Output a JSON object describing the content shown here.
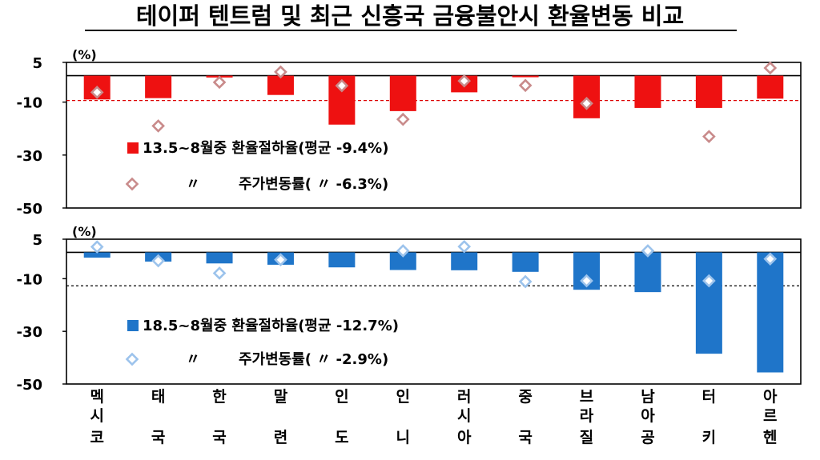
{
  "title": "테이퍼 텐트럼 및 최근 신흥국 금융불안시 환율변동 비교",
  "colors": {
    "top_bar": "#ee1111",
    "top_marker": "#c98b8b",
    "top_refline": "#dd0000",
    "bottom_bar": "#1f75c9",
    "bottom_marker": "#9cc3ec",
    "bottom_refline": "#000000",
    "axis": "#000000",
    "text": "#000000"
  },
  "chart_data": [
    {
      "type": "bar",
      "unit_label": "(%)",
      "categories": [
        "멕시코",
        "태국",
        "한국",
        "말련",
        "인도",
        "인니",
        "러시아",
        "중국",
        "브라질",
        "남아공",
        "터키",
        "아르헨"
      ],
      "ylim": [
        -50,
        5
      ],
      "yticks": [
        5,
        -10,
        -30,
        -50
      ],
      "reference_line": -9.4,
      "series": [
        {
          "name": "13.5~8월중 환율절하율(평균 -9.4%)",
          "kind": "bar",
          "values": [
            -9.0,
            -8.5,
            -0.7,
            -7.3,
            -18.5,
            -13.4,
            -6.3,
            -0.6,
            -16.1,
            -12.2,
            -12.2,
            -8.7
          ]
        },
        {
          "name": "주가변동률( 〃 -6.3%)",
          "kind": "marker",
          "values": [
            -6.3,
            -19.0,
            -2.5,
            1.4,
            -3.8,
            -16.5,
            -2.0,
            -3.7,
            -10.5,
            null,
            -23.0,
            2.9
          ]
        }
      ],
      "legend": [
        {
          "marker": "■",
          "text": "13.5~8월중 환율절하율(평균  -9.4%)"
        },
        {
          "marker": "◇",
          "ditto": "〃",
          "text": "주가변동률(  〃    -6.3%)"
        }
      ]
    },
    {
      "type": "bar",
      "unit_label": "(%)",
      "categories": [
        "멕시코",
        "태국",
        "한국",
        "말련",
        "인도",
        "인니",
        "러시아",
        "중국",
        "브라질",
        "남아공",
        "터키",
        "아르헨"
      ],
      "ylim": [
        -50,
        5
      ],
      "yticks": [
        5,
        -10,
        -30,
        -50
      ],
      "reference_line": -12.7,
      "series": [
        {
          "name": "18.5~8월중 환율절하율(평균 -12.7%)",
          "kind": "bar",
          "values": [
            -2.0,
            -3.5,
            -4.2,
            -4.7,
            -5.7,
            -6.7,
            -6.8,
            -7.4,
            -14.2,
            -15.1,
            -38.5,
            -45.6
          ]
        },
        {
          "name": "주가변동률( 〃 -2.9%)",
          "kind": "marker",
          "values": [
            2.1,
            -3.2,
            -7.9,
            -2.8,
            null,
            0.6,
            2.2,
            -11.1,
            -10.8,
            0.6,
            -10.8,
            -2.5
          ]
        }
      ],
      "legend": [
        {
          "marker": "■",
          "text": "18.5~8월중 환율절하율(평균  -12.7%)"
        },
        {
          "marker": "◇",
          "ditto": "〃",
          "text": "주가변동률(  〃    -2.9%)"
        }
      ]
    }
  ],
  "x_labels": [
    [
      "멕",
      "시",
      "코"
    ],
    [
      "태",
      "",
      "국"
    ],
    [
      "한",
      "",
      "국"
    ],
    [
      "말",
      "",
      "련"
    ],
    [
      "인",
      "",
      "도"
    ],
    [
      "인",
      "",
      "니"
    ],
    [
      "러",
      "시",
      "아"
    ],
    [
      "중",
      "",
      "국"
    ],
    [
      "브",
      "라",
      "질"
    ],
    [
      "남",
      "아",
      "공"
    ],
    [
      "터",
      "",
      "키"
    ],
    [
      "아",
      "르",
      "헨"
    ]
  ]
}
